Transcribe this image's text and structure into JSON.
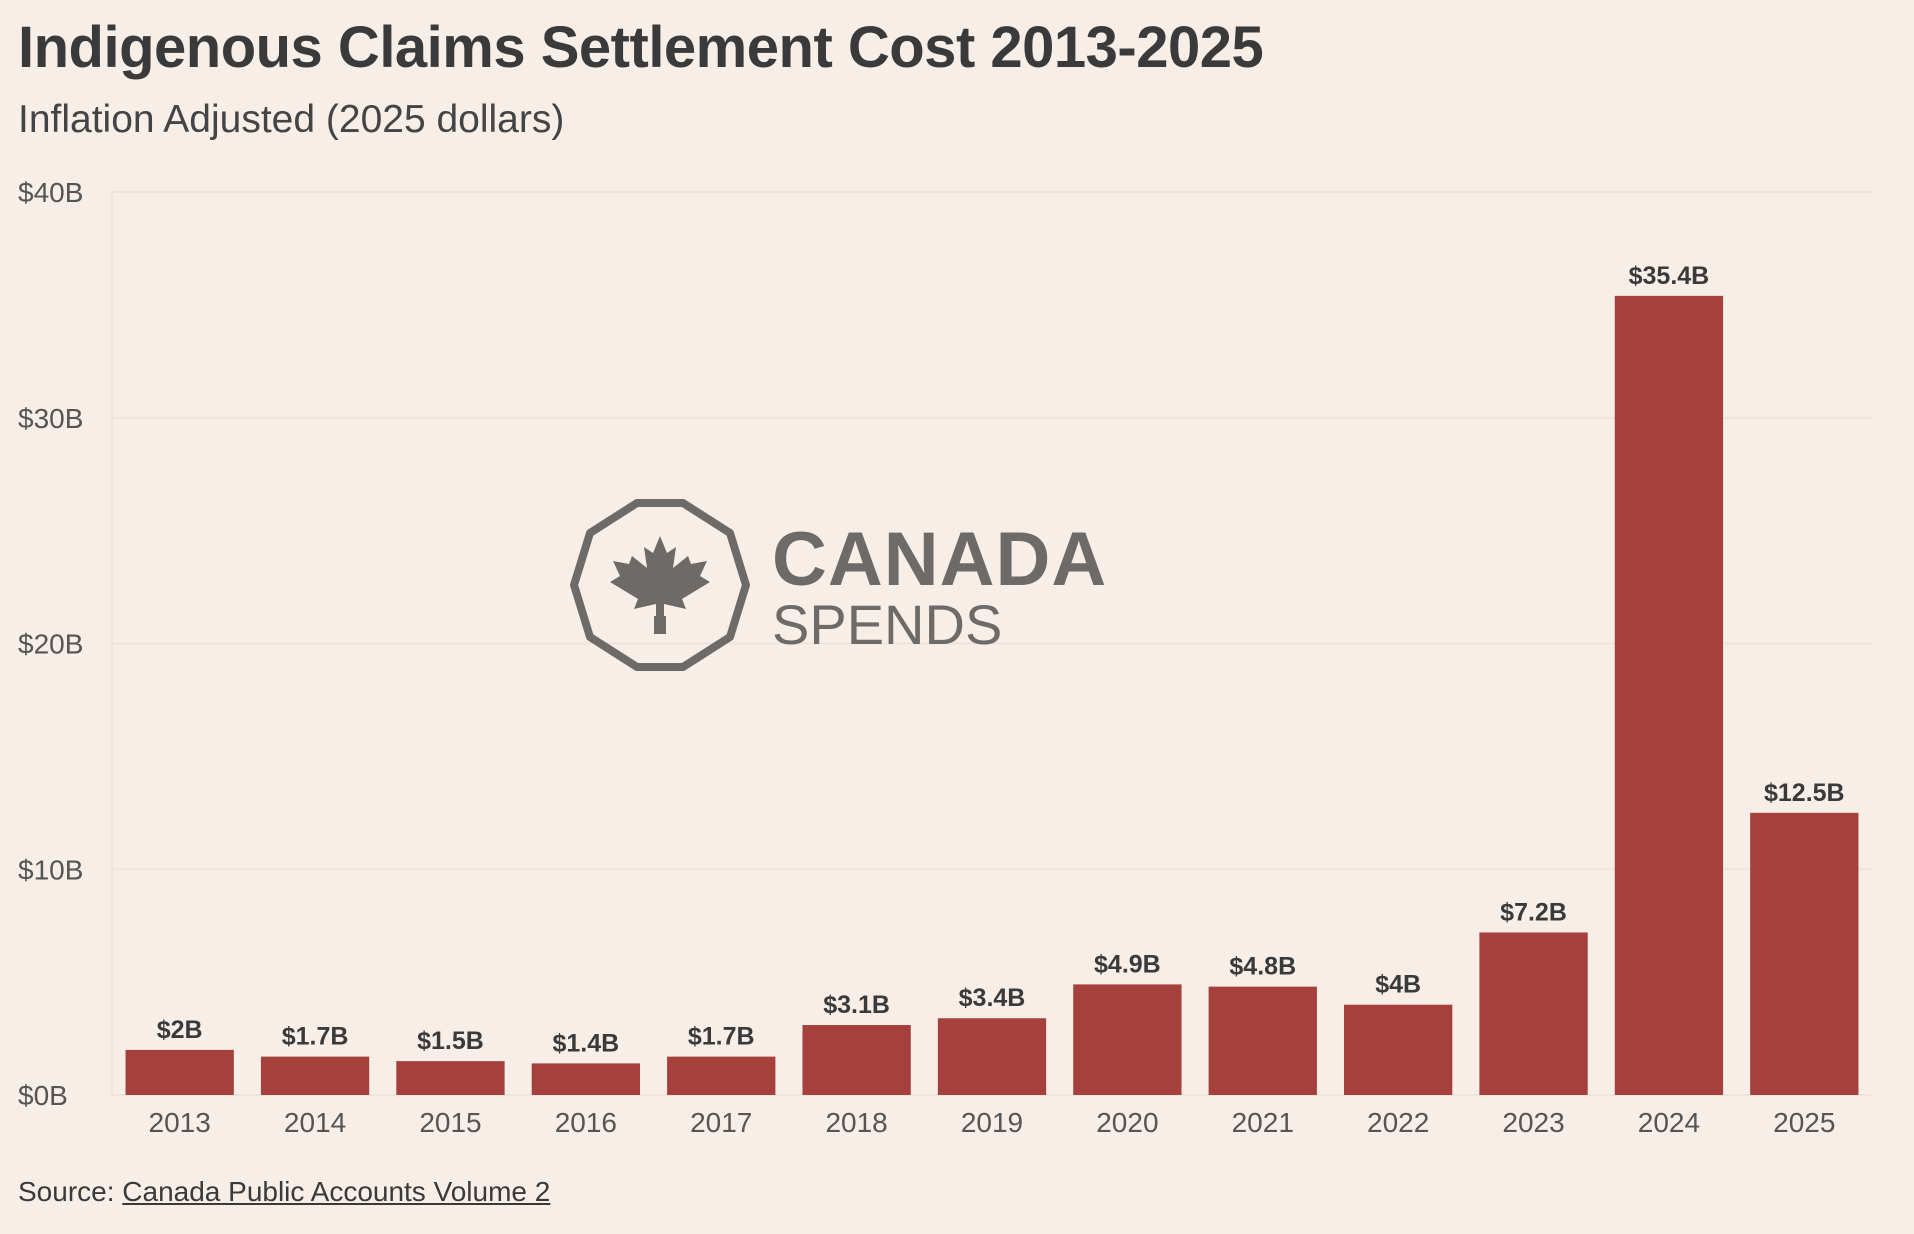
{
  "chart_data": {
    "type": "bar",
    "title": "Indigenous Claims Settlement Cost 2013-2025",
    "subtitle": "Inflation Adjusted (2025 dollars)",
    "xlabel": "",
    "ylabel": "",
    "ylim": [
      0,
      40
    ],
    "y_ticks": [
      0,
      10,
      20,
      30,
      40
    ],
    "y_tick_labels": [
      "$0B",
      "$10B",
      "$20B",
      "$30B",
      "$40B"
    ],
    "categories": [
      "2013",
      "2014",
      "2015",
      "2016",
      "2017",
      "2018",
      "2019",
      "2020",
      "2021",
      "2022",
      "2023",
      "2024",
      "2025"
    ],
    "values": [
      2,
      1.7,
      1.5,
      1.4,
      1.7,
      3.1,
      3.4,
      4.9,
      4.8,
      4,
      7.2,
      35.4,
      12.5
    ],
    "data_labels": [
      "$2B",
      "$1.7B",
      "$1.5B",
      "$1.4B",
      "$1.7B",
      "$3.1B",
      "$3.4B",
      "$4.9B",
      "$4.8B",
      "$4B",
      "$7.2B",
      "$35.4B",
      "$12.5B"
    ],
    "grid": true,
    "legend": "none",
    "colors": {
      "bar": "#a6403c",
      "grid": "#efe4dc",
      "background": "#f7eee8"
    }
  },
  "source": {
    "prefix": "Source: ",
    "link_text": "Canada Public Accounts Volume 2"
  },
  "watermark": {
    "line1": "CANADA",
    "line2": "SPENDS",
    "icon": "maple-leaf-octagon-icon"
  }
}
